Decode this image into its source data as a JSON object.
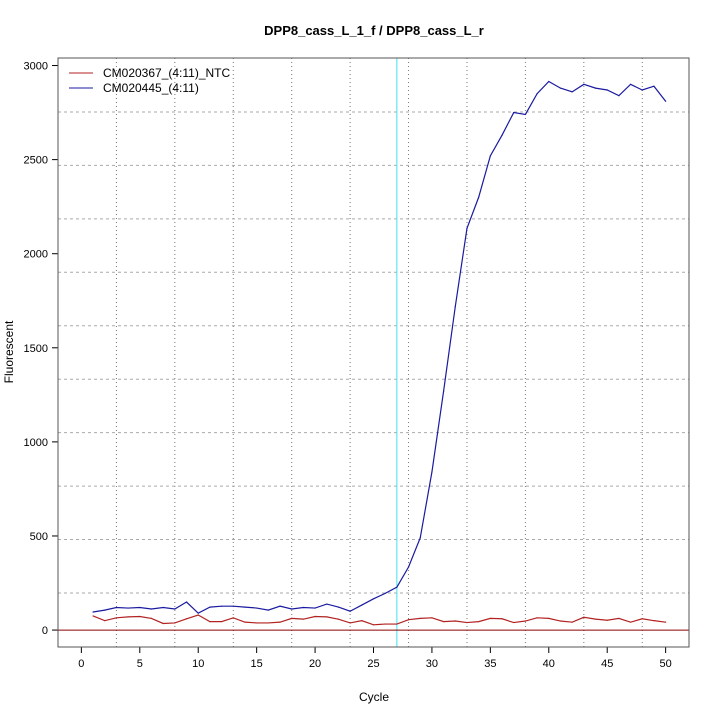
{
  "chart_data": {
    "type": "line",
    "title": "DPP8_cass_L_1_f / DPP8_cass_L_r",
    "xlabel": "Cycle",
    "ylabel": "Fluorescent",
    "xlim": [
      -2,
      52
    ],
    "ylim": [
      -90,
      3040
    ],
    "xticks": [
      0,
      5,
      10,
      15,
      20,
      25,
      30,
      35,
      40,
      45,
      50
    ],
    "yticks": [
      0,
      500,
      1000,
      1500,
      2000,
      2500,
      3000
    ],
    "grid": true,
    "legend_placement": "top-left",
    "threshold_cycle": 27,
    "threshold_color": "#40e0f0",
    "baseline_color": "#8b0000",
    "x": [
      1,
      2,
      3,
      4,
      5,
      6,
      7,
      8,
      9,
      10,
      11,
      12,
      13,
      14,
      15,
      16,
      17,
      18,
      19,
      20,
      21,
      22,
      23,
      24,
      25,
      26,
      27,
      28,
      29,
      30,
      31,
      32,
      33,
      34,
      35,
      36,
      37,
      38,
      39,
      40,
      41,
      42,
      43,
      44,
      45,
      46,
      47,
      48,
      49,
      50
    ],
    "series": [
      {
        "name": "CM020367_(4:11)_NTC",
        "color": "#b22222",
        "values": [
          75,
          50,
          65,
          70,
          72,
          62,
          35,
          38,
          60,
          80,
          45,
          45,
          65,
          42,
          38,
          38,
          42,
          62,
          58,
          72,
          70,
          58,
          38,
          50,
          28,
          32,
          32,
          55,
          62,
          65,
          45,
          48,
          40,
          45,
          62,
          60,
          40,
          48,
          65,
          62,
          48,
          42,
          68,
          58,
          52,
          62,
          42,
          60,
          50,
          42
        ]
      },
      {
        "name": "CM020445_(4:11)",
        "color": "#1a1aa0",
        "values": [
          96,
          106,
          120,
          117,
          120,
          112,
          120,
          112,
          149,
          90,
          122,
          127,
          127,
          122,
          117,
          106,
          127,
          112,
          120,
          117,
          138,
          122,
          100,
          133,
          166,
          195,
          228,
          335,
          490,
          840,
          1270,
          1720,
          2135,
          2300,
          2520,
          2630,
          2750,
          2740,
          2850,
          2915,
          2880,
          2860,
          2900,
          2880,
          2870,
          2840,
          2900,
          2870,
          2890,
          2810
        ]
      }
    ]
  }
}
